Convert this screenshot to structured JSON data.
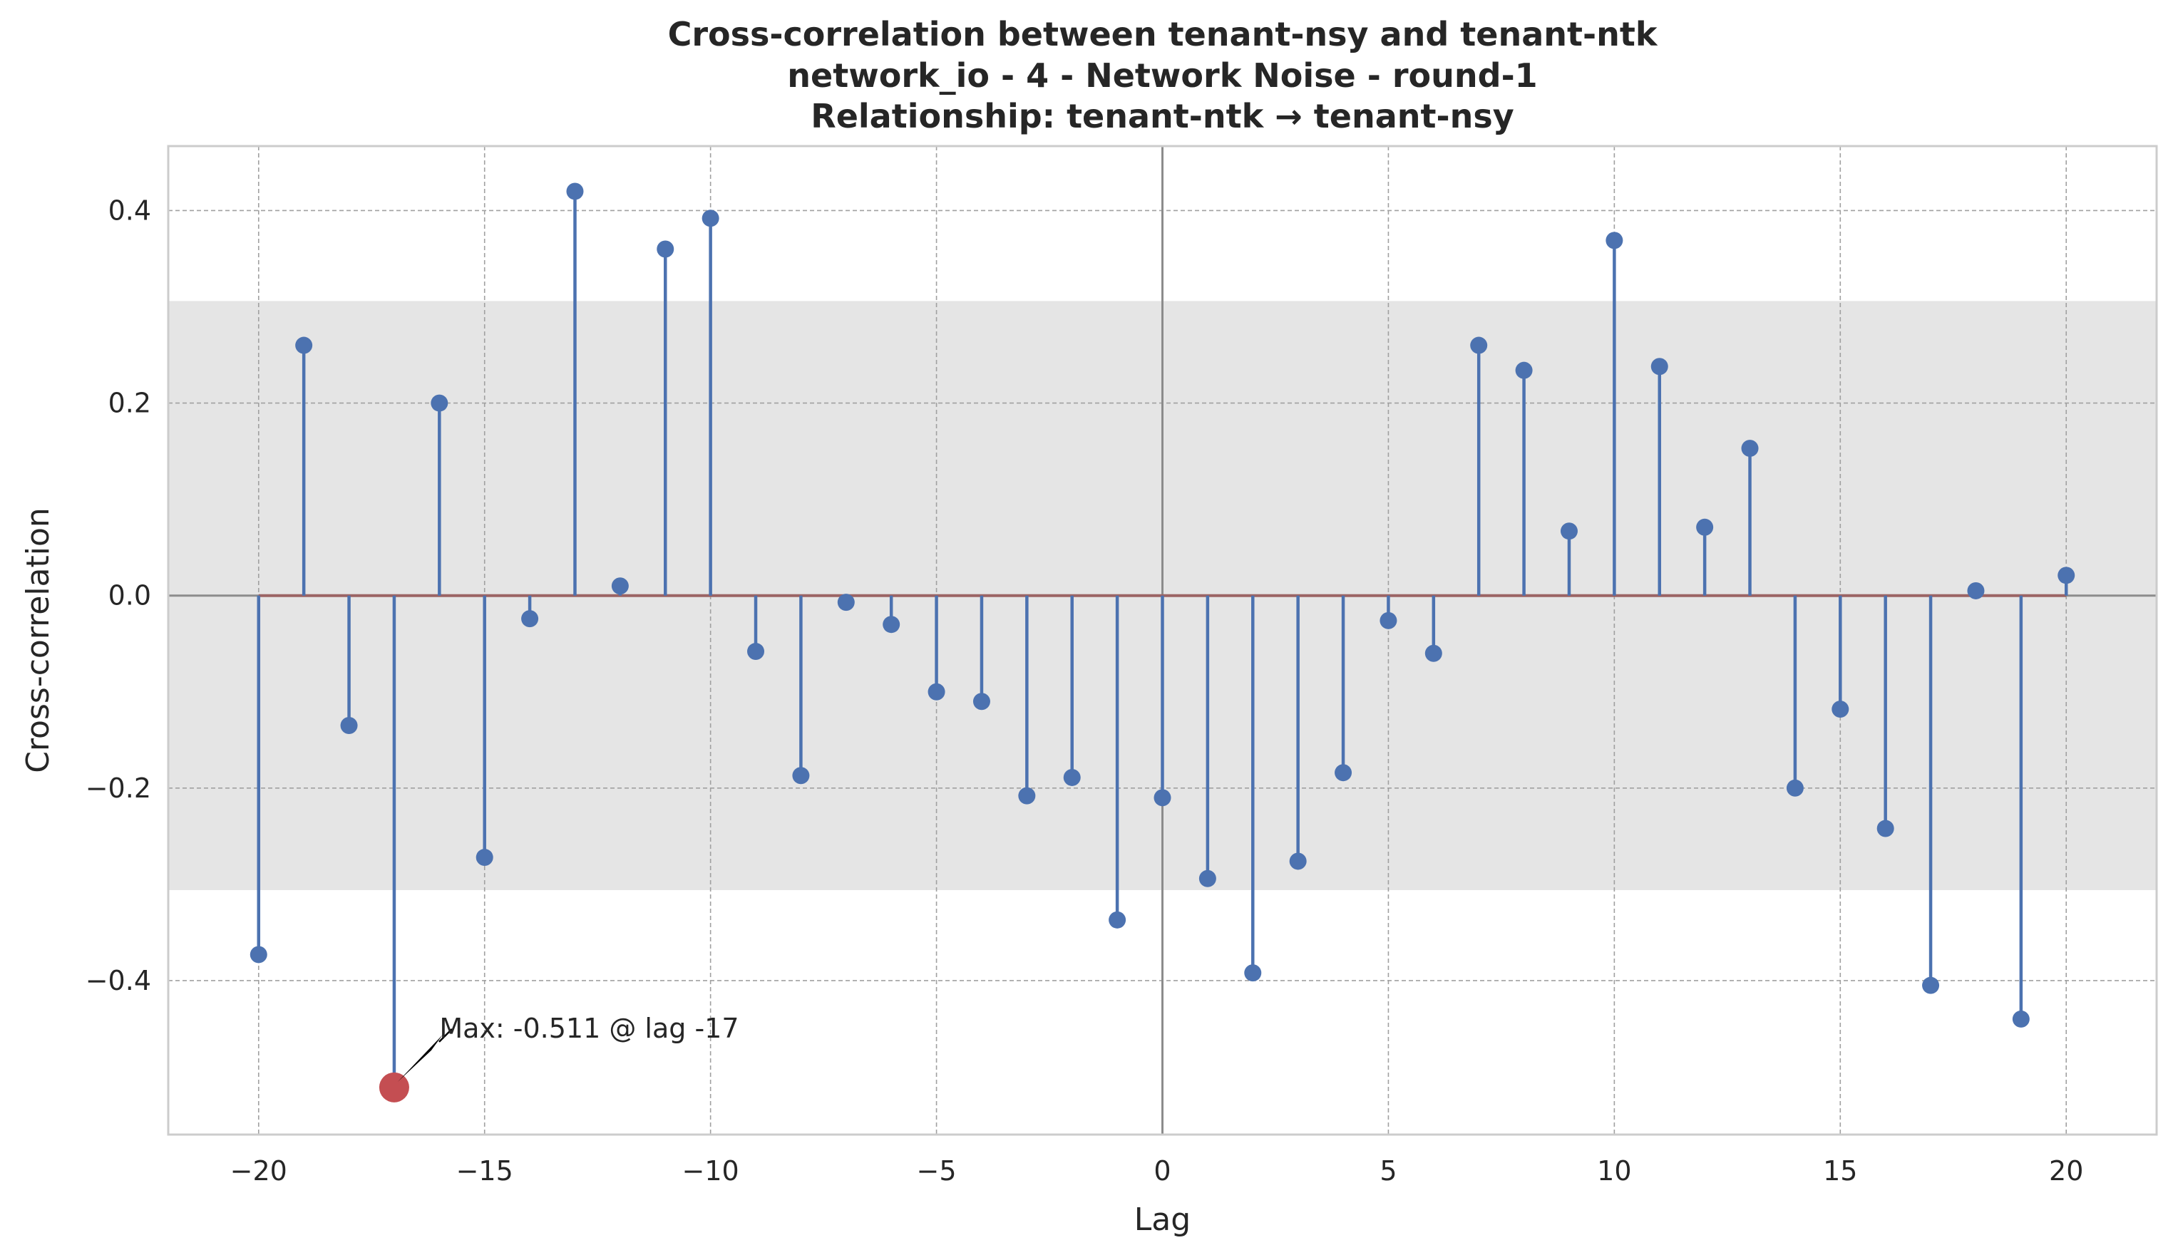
{
  "chart_data": {
    "type": "stem",
    "title_lines": [
      "Cross-correlation between tenant-nsy and tenant-ntk",
      "network_io - 4 - Network Noise - round-1",
      "Relationship: tenant-ntk → tenant-nsy"
    ],
    "xlabel": "Lag",
    "ylabel": "Cross-correlation",
    "xlim": [
      -22,
      22
    ],
    "ylim": [
      -0.56,
      0.467
    ],
    "xticks": [
      -20,
      -15,
      -10,
      -5,
      0,
      5,
      10,
      15,
      20
    ],
    "xtick_labels": [
      "−20",
      "−15",
      "−10",
      "−5",
      "0",
      "5",
      "10",
      "15",
      "20"
    ],
    "yticks": [
      -0.4,
      -0.2,
      0.0,
      0.2,
      0.4
    ],
    "ytick_labels": [
      "−0.4",
      "−0.2",
      "0.0",
      "0.2",
      "0.4"
    ],
    "grid": true,
    "confidence_band": [
      -0.306,
      0.306
    ],
    "lags": [
      -20,
      -19,
      -18,
      -17,
      -16,
      -15,
      -14,
      -13,
      -12,
      -11,
      -10,
      -9,
      -8,
      -7,
      -6,
      -5,
      -4,
      -3,
      -2,
      -1,
      0,
      1,
      2,
      3,
      4,
      5,
      6,
      7,
      8,
      9,
      10,
      11,
      12,
      13,
      14,
      15,
      16,
      17,
      18,
      19,
      20
    ],
    "values": [
      -0.373,
      0.26,
      -0.135,
      -0.511,
      0.2,
      -0.272,
      -0.024,
      0.42,
      0.01,
      0.36,
      0.392,
      -0.058,
      -0.187,
      -0.007,
      -0.03,
      -0.1,
      -0.11,
      -0.208,
      -0.189,
      -0.337,
      -0.21,
      -0.294,
      -0.392,
      -0.276,
      -0.184,
      -0.026,
      -0.06,
      0.26,
      0.234,
      0.067,
      0.369,
      0.238,
      0.071,
      0.153,
      -0.2,
      -0.118,
      -0.242,
      -0.405,
      0.005,
      -0.44,
      0.021
    ],
    "max_point": {
      "lag": -17,
      "value": -0.511
    },
    "annotation": "Max: -0.511 @ lag -17",
    "colors": {
      "stem": "#4c72b0",
      "baseline": "#9b6464",
      "max_marker": "#c44e52",
      "band": "#e5e5e5",
      "grid": "#a0a0a0",
      "zero_line": "#8c8c8c",
      "frame": "#cccccc",
      "text": "#262626"
    }
  }
}
